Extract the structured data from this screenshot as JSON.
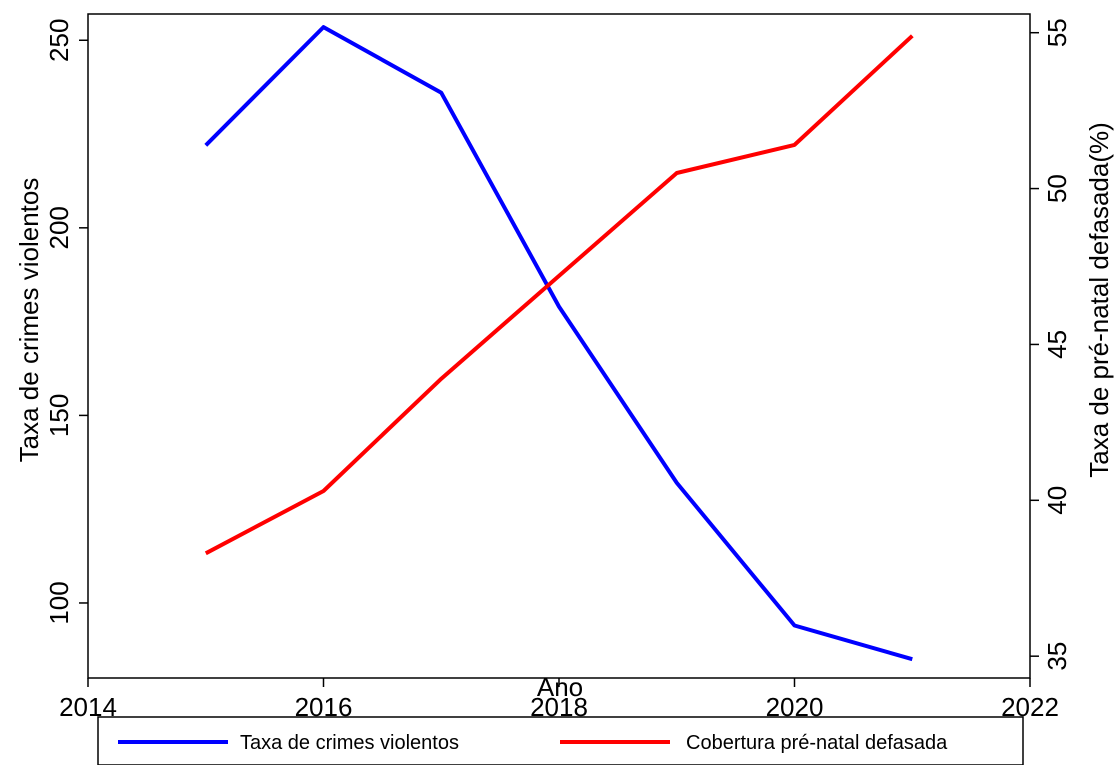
{
  "chart_data": {
    "type": "line",
    "title": "",
    "xlabel": "Ano",
    "ylabel_left": "Taxa de crimes violentos",
    "ylabel_right": "Taxa de pré-natal defasada(%)",
    "x": [
      2015,
      2016,
      2017,
      2018,
      2019,
      2020,
      2021
    ],
    "xlim": [
      2014,
      2022
    ],
    "xticks": [
      "2014",
      "2016",
      "2018",
      "2020",
      "2022"
    ],
    "ylim_left": [
      80,
      257
    ],
    "yticks_left": [
      "100",
      "150",
      "200",
      "250"
    ],
    "ylim_right": [
      34.3,
      55.6
    ],
    "yticks_right": [
      "35",
      "40",
      "45",
      "50",
      "55"
    ],
    "grid": false,
    "legend_position": "bottom",
    "series": [
      {
        "name": "Taxa de crimes violentos",
        "axis": "left",
        "color": "#0000ff",
        "values": [
          222,
          253.5,
          236,
          179,
          132,
          94,
          85
        ]
      },
      {
        "name": "Cobertura pré-natal defasada",
        "axis": "right",
        "color": "#ff0000",
        "values": [
          38.3,
          40.3,
          43.9,
          47.2,
          50.5,
          51.4,
          54.9
        ]
      }
    ]
  }
}
